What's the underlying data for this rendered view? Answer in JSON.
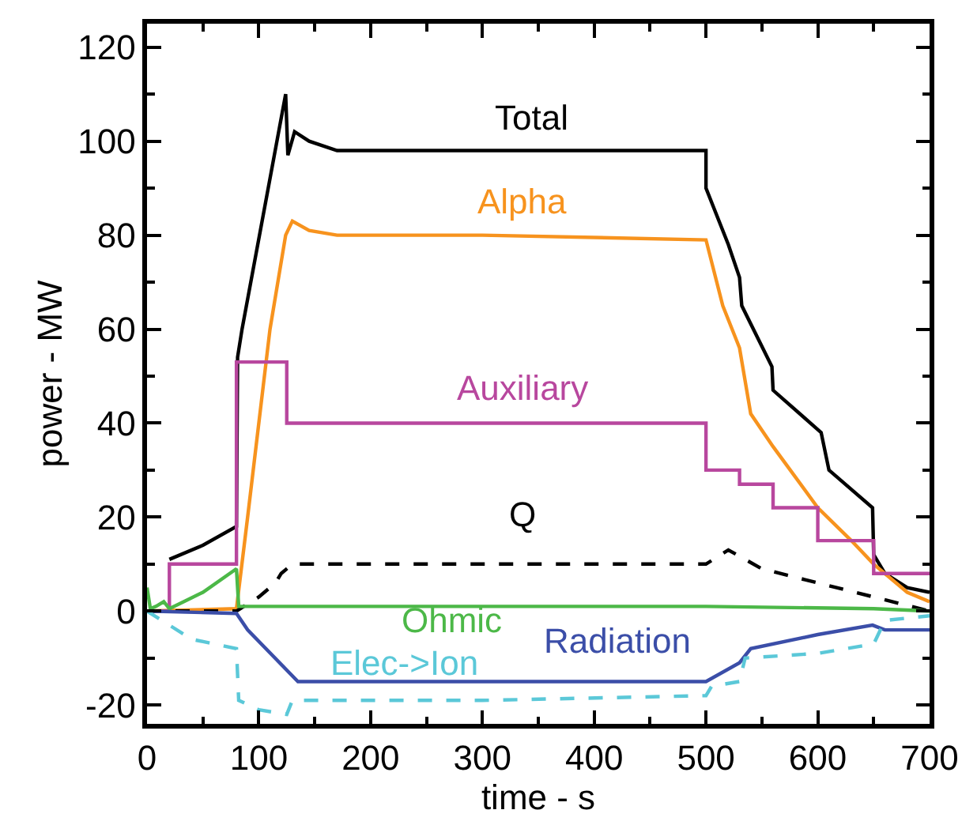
{
  "chart_data": {
    "type": "line",
    "xlabel": "time - s",
    "ylabel": "power - MW",
    "xlim": [
      0,
      700
    ],
    "ylim": [
      -24,
      125
    ],
    "xticks": [
      0,
      100,
      200,
      300,
      400,
      500,
      600,
      700
    ],
    "yticks": [
      -20,
      0,
      20,
      40,
      60,
      80,
      100,
      120
    ],
    "grid": false,
    "legend": false,
    "series": [
      {
        "name": "Total",
        "color": "#000000",
        "line_style": "solid",
        "x": [
          20,
          50,
          80,
          81,
          85,
          124,
          126,
          132,
          145,
          170,
          300,
          500,
          500,
          520,
          530,
          532,
          559,
          560,
          603,
          610,
          649,
          650,
          660,
          680,
          700
        ],
        "values": [
          11,
          14,
          18,
          54,
          60,
          110,
          97,
          102,
          100,
          98,
          98,
          98,
          90,
          78,
          71,
          65,
          52,
          47,
          38,
          30,
          22,
          12,
          8,
          5,
          4
        ]
      },
      {
        "name": "Alpha",
        "color": "#f7931e",
        "line_style": "solid",
        "x": [
          0,
          80,
          90,
          110,
          124,
          130,
          145,
          170,
          300,
          500,
          515,
          530,
          540,
          560,
          600,
          630,
          650,
          680,
          700
        ],
        "values": [
          0,
          0.5,
          20,
          60,
          80,
          83,
          81,
          80,
          80,
          79,
          65,
          56,
          42,
          35,
          22,
          15,
          10,
          4,
          2
        ]
      },
      {
        "name": "Auxiliary",
        "color": "#b8479e",
        "type": "step",
        "line_style": "solid",
        "x": [
          0,
          20,
          80,
          125,
          500,
          530,
          560,
          600,
          650,
          700
        ],
        "values": [
          0,
          10,
          53,
          40,
          30,
          27,
          22,
          15,
          8,
          8
        ]
      },
      {
        "name": "Q",
        "color": "#000000",
        "line_style": "dashed",
        "x": [
          0,
          80,
          100,
          115,
          120,
          130,
          300,
          500,
          520,
          550,
          600,
          650,
          700
        ],
        "values": [
          0,
          0,
          3,
          6,
          8,
          10,
          10,
          10,
          13,
          9,
          6,
          3,
          0
        ]
      },
      {
        "name": "Ohmic",
        "color": "#4cb848",
        "line_style": "solid",
        "x": [
          0,
          3,
          8,
          15,
          20,
          50,
          80,
          82,
          300,
          500,
          650,
          700
        ],
        "values": [
          5,
          0.5,
          1,
          2,
          0.5,
          4,
          9,
          1,
          1,
          1,
          0.5,
          0
        ]
      },
      {
        "name": "Radiation",
        "color": "#3b4ea8",
        "line_style": "solid",
        "x": [
          0,
          80,
          90,
          135,
          300,
          500,
          530,
          540,
          600,
          649,
          660,
          700
        ],
        "values": [
          0,
          -0.5,
          -4,
          -15,
          -15,
          -15,
          -11,
          -8,
          -5,
          -3,
          -4,
          -4
        ]
      },
      {
        "name": "Elec->Ion",
        "color": "#5bc8d8",
        "line_style": "dashed",
        "x": [
          0,
          20,
          40,
          80,
          82,
          100,
          125,
          130,
          300,
          500,
          505,
          530,
          535,
          600,
          650,
          660,
          700
        ],
        "values": [
          0,
          -3,
          -6,
          -8,
          -19,
          -21,
          -22,
          -19,
          -19,
          -18,
          -16,
          -15,
          -10,
          -9,
          -7,
          -2,
          -1
        ]
      }
    ]
  }
}
